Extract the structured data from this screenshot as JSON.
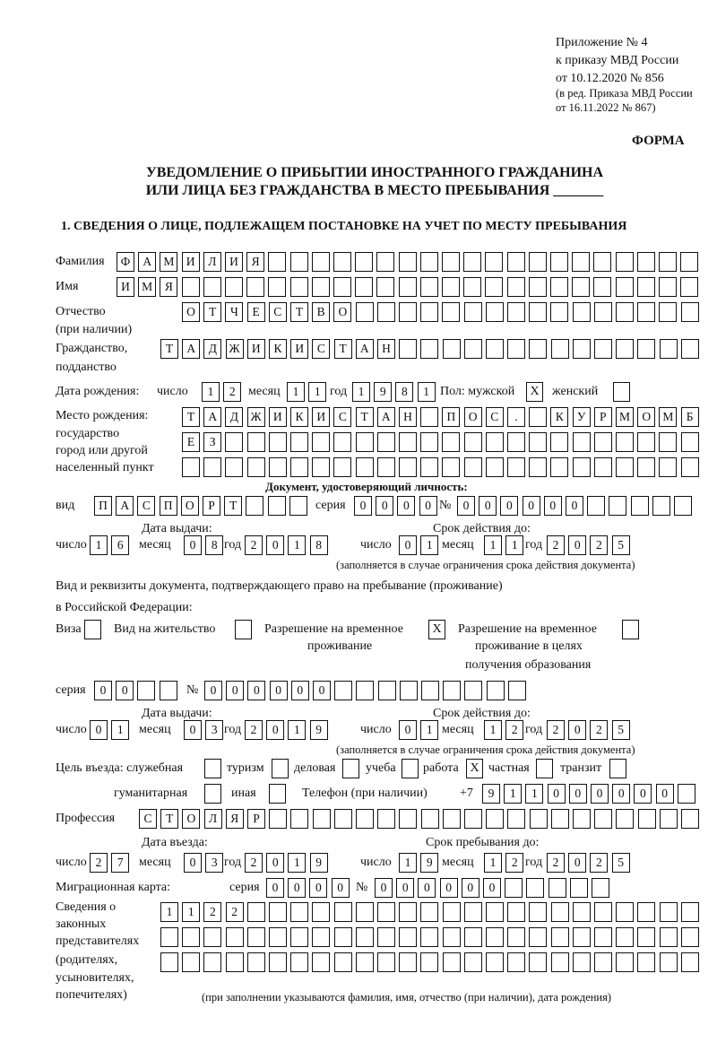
{
  "header": {
    "appendix": "Приложение № 4",
    "order": "к приказу МВД России",
    "order_date": "от 10.12.2020 № 856",
    "edition1": "(в ред. Приказа МВД России",
    "edition2": "от 16.11.2022 № 867)",
    "form_label": "ФОРМА",
    "title1": "УВЕДОМЛЕНИЕ О ПРИБЫТИИ ИНОСТРАННОГО ГРАЖДАНИНА",
    "title2": "ИЛИ ЛИЦА БЕЗ ГРАЖДАНСТВА В МЕСТО ПРЕБЫВАНИЯ _______",
    "section1": "1. СВЕДЕНИЯ О ЛИЦЕ, ПОДЛЕЖАЩЕМ ПОСТАНОВКЕ НА УЧЕТ ПО МЕСТУ ПРЕБЫВАНИЯ"
  },
  "labels": {
    "surname": "Фамилия",
    "name": "Имя",
    "patronymic": "Отчество",
    "patronymic2": "(при наличии)",
    "citizenship": "Гражданство,",
    "citizenship2": "подданство",
    "birth_date": "Дата рождения:",
    "day": "число",
    "month": "месяц",
    "year": "год",
    "sex": "Пол: мужской",
    "female": "женский",
    "birthplace1": "Место рождения:",
    "birthplace2": "государство",
    "birthplace3": "город или другой",
    "birthplace4": "населенный пункт",
    "id_doc": "Документ, удостоверяющий личность:",
    "kind": "вид",
    "series": "серия",
    "number": "№",
    "issue_date": "Дата выдачи:",
    "valid_until": "Срок действия до:",
    "validity_note": "(заполняется в случае ограничения срока действия документа)",
    "stay_doc1": "Вид и реквизиты документа, подтверждающего право на пребывание (проживание)",
    "stay_doc2": "в Российской Федерации:",
    "visa": "Виза",
    "residence": "Вид на жительство",
    "temp_permit1": "Разрешение на временное",
    "temp_permit2": "проживание",
    "edu_permit1": "Разрешение на временное",
    "edu_permit2": "проживание в целях",
    "edu_permit3": "получения образования",
    "purpose": "Цель въезда: служебная",
    "tourism": "туризм",
    "business": "деловая",
    "study": "учеба",
    "work": "работа",
    "private": "частная",
    "transit": "транзит",
    "humanitarian": "гуманитарная",
    "other": "иная",
    "phone": "Телефон (при наличии)",
    "phone_prefix": "+7",
    "profession": "Профессия",
    "entry_date": "Дата въезда:",
    "stay_until": "Срок пребывания до:",
    "migration_card": "Миграционная карта:",
    "reps1": "Сведения о",
    "reps2": "законных",
    "reps3": "представителях",
    "reps4": "(родителях,",
    "reps5": "усыновителях,",
    "reps6": "попечителях)",
    "reps_note": "(при заполнении указываются фамилия, имя, отчество (при наличии), дата рождения)"
  },
  "person": {
    "surname": "ФАМИЛИЯ",
    "name": "ИМЯ",
    "patronymic": "ОТЧЕСТВО",
    "citizenship": "ТАДЖИКИСТАН",
    "birth_day": "12",
    "birth_month": "11",
    "birth_year": "1981",
    "male": "X",
    "female": "",
    "birthplace1": "ТАДЖИКИСТАН ПОС. КУРМОМБ",
    "birthplace2": "ЕЗ",
    "birthplace3": ""
  },
  "id_document": {
    "kind": "ПАСПОРТ",
    "series": "0000",
    "number": "000000",
    "issue_day": "16",
    "issue_month": "08",
    "issue_year": "2018",
    "valid_day": "01",
    "valid_month": "11",
    "valid_year": "2025"
  },
  "stay_document": {
    "visa": "",
    "residence": "",
    "temp_permit": "X",
    "edu_permit": "",
    "series": "00",
    "number": "000000",
    "issue_day": "01",
    "issue_month": "03",
    "issue_year": "2019",
    "valid_day": "01",
    "valid_month": "12",
    "valid_year": "2025"
  },
  "purpose": {
    "official": "",
    "tourism": "",
    "business": "",
    "study": "",
    "work": "X",
    "private": "",
    "transit": "",
    "humanitarian": "",
    "other": ""
  },
  "phone": "911000000",
  "profession": "СТОЛЯР",
  "entry": {
    "entry_day": "27",
    "entry_month": "03",
    "entry_year": "2019",
    "until_day": "19",
    "until_month": "12",
    "until_year": "2025"
  },
  "migration_card": {
    "series": "0000",
    "number": "000000"
  },
  "representatives": {
    "line1": "1122",
    "line2": "",
    "line3": ""
  }
}
